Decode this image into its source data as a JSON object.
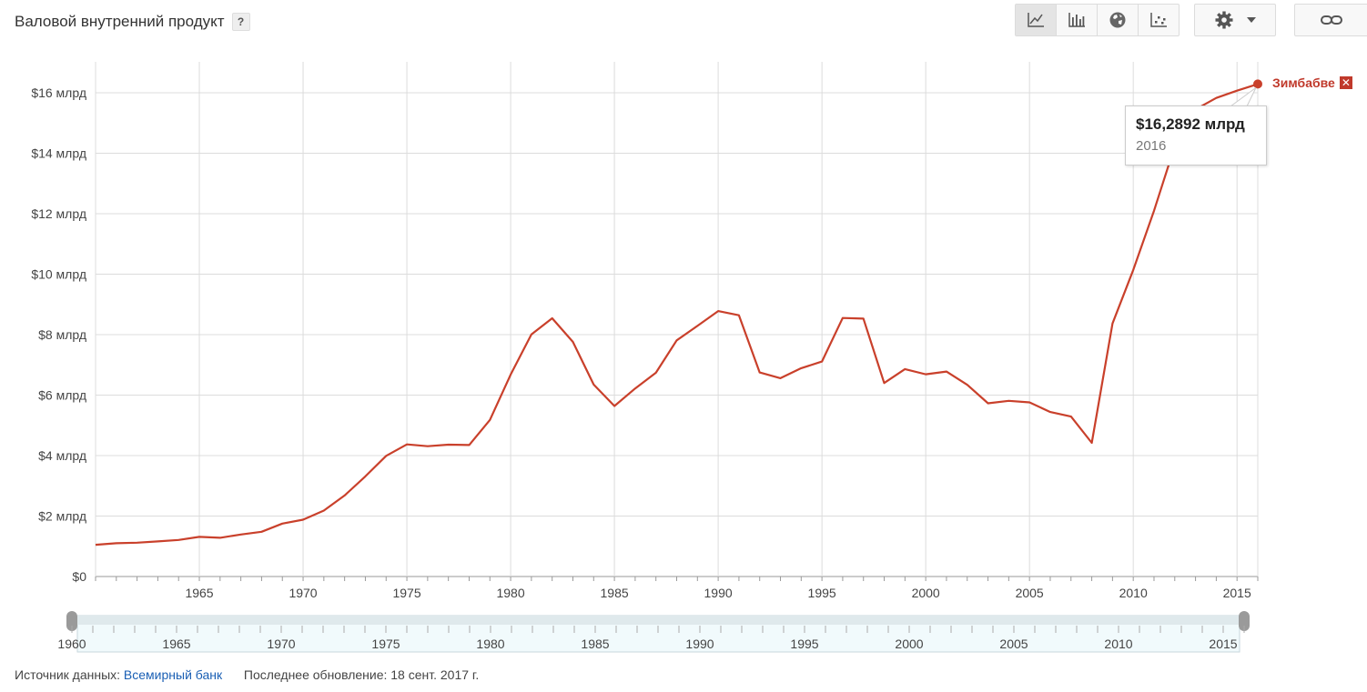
{
  "header": {
    "title": "Валовой внутренний продукт",
    "help_label": "?"
  },
  "toolbar": {
    "buttons": [
      {
        "icon": "line-chart-icon"
      },
      {
        "icon": "bar-chart-icon"
      },
      {
        "icon": "globe-icon"
      },
      {
        "icon": "scatter-icon"
      }
    ],
    "settings_icon": "gear-icon",
    "link_icon": "link-icon"
  },
  "chart_data": {
    "type": "line",
    "title": "Валовой внутренний продукт",
    "xlim": [
      1960,
      2016
    ],
    "ylim": [
      0,
      17
    ],
    "y_ticks": [
      0,
      2,
      4,
      6,
      8,
      10,
      12,
      14,
      16
    ],
    "y_tick_labels": [
      "$0",
      "$2 млрд",
      "$4 млрд",
      "$6 млрд",
      "$8 млрд",
      "$10 млрд",
      "$12 млрд",
      "$14 млрд",
      "$16 млрд"
    ],
    "x_ticks": [
      1965,
      1970,
      1975,
      1980,
      1985,
      1990,
      1995,
      2000,
      2005,
      2010,
      2015
    ],
    "x_tick_labels": [
      "1965",
      "1970",
      "1975",
      "1980",
      "1985",
      "1990",
      "1995",
      "2000",
      "2005",
      "2010",
      "2015"
    ],
    "grid": true,
    "series": [
      {
        "name": "Зимбабве",
        "color": "#c9402b",
        "x": [
          1960,
          1961,
          1962,
          1963,
          1964,
          1965,
          1966,
          1967,
          1968,
          1969,
          1970,
          1971,
          1972,
          1973,
          1974,
          1975,
          1976,
          1977,
          1978,
          1979,
          1980,
          1981,
          1982,
          1983,
          1984,
          1985,
          1986,
          1987,
          1988,
          1989,
          1990,
          1991,
          1992,
          1993,
          1994,
          1995,
          1996,
          1997,
          1998,
          1999,
          2000,
          2001,
          2002,
          2003,
          2004,
          2005,
          2006,
          2007,
          2008,
          2009,
          2010,
          2011,
          2012,
          2013,
          2014,
          2015,
          2016
        ],
        "values": [
          1.05,
          1.1,
          1.12,
          1.16,
          1.21,
          1.31,
          1.28,
          1.39,
          1.48,
          1.75,
          1.88,
          2.18,
          2.68,
          3.31,
          3.99,
          4.37,
          4.31,
          4.36,
          4.35,
          5.18,
          6.68,
          8.01,
          8.54,
          7.76,
          6.35,
          5.64,
          6.22,
          6.74,
          7.81,
          8.29,
          8.78,
          8.64,
          6.75,
          6.56,
          6.89,
          7.11,
          8.55,
          8.53,
          6.4,
          6.86,
          6.69,
          6.78,
          6.34,
          5.73,
          5.81,
          5.76,
          5.44,
          5.29,
          4.42,
          8.37,
          10.14,
          12.1,
          14.24,
          15.45,
          15.83,
          16.07,
          16.29
        ]
      }
    ],
    "highlight": {
      "value_label": "$16,2892 млрд",
      "year_label": "2016"
    },
    "range_selector": {
      "start": 1960,
      "end": 2016,
      "tick_labels": [
        "1960",
        "1965",
        "1970",
        "1975",
        "1980",
        "1985",
        "1990",
        "1995",
        "2000",
        "2005",
        "2010",
        "2015"
      ]
    }
  },
  "series_label": {
    "name": "Зимбабве",
    "close_label": "✕"
  },
  "footer": {
    "source_prefix": "Источник данных:",
    "source_link": "Всемирный банк",
    "updated": "Последнее обновление: 18 сент. 2017 г."
  }
}
